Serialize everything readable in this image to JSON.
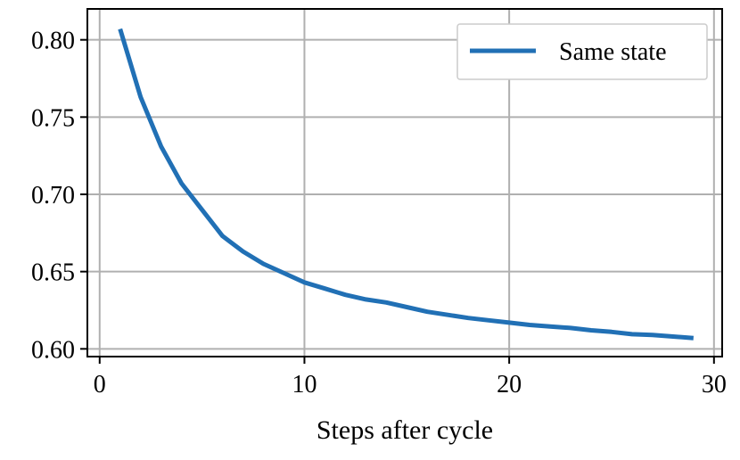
{
  "chart_data": {
    "type": "line",
    "title": "",
    "xlabel": "Steps after cycle",
    "ylabel": "",
    "xlim": [
      -0.6,
      30.4
    ],
    "ylim": [
      0.595,
      0.82
    ],
    "xticks": [
      0,
      10,
      20,
      30
    ],
    "xtick_labels": [
      "0",
      "10",
      "20",
      "30"
    ],
    "yticks": [
      0.6,
      0.65,
      0.7,
      0.75,
      0.8
    ],
    "ytick_labels": [
      "0.60",
      "0.65",
      "0.70",
      "0.75",
      "0.80"
    ],
    "grid": true,
    "legend_position": "top-right",
    "colors": {
      "series": "#2170b5",
      "grid": "#b0b0b0",
      "axis": "#000000"
    },
    "series": [
      {
        "name": "Same state",
        "x": [
          1,
          2,
          3,
          4,
          5,
          6,
          7,
          8,
          9,
          10,
          11,
          12,
          13,
          14,
          15,
          16,
          17,
          18,
          19,
          20,
          21,
          22,
          23,
          24,
          25,
          26,
          27,
          28,
          29
        ],
        "y": [
          0.807,
          0.763,
          0.731,
          0.707,
          0.69,
          0.673,
          0.663,
          0.655,
          0.649,
          0.643,
          0.639,
          0.635,
          0.632,
          0.63,
          0.627,
          0.624,
          0.622,
          0.62,
          0.6185,
          0.617,
          0.6155,
          0.6145,
          0.6135,
          0.612,
          0.611,
          0.6095,
          0.609,
          0.608,
          0.607
        ]
      }
    ]
  }
}
